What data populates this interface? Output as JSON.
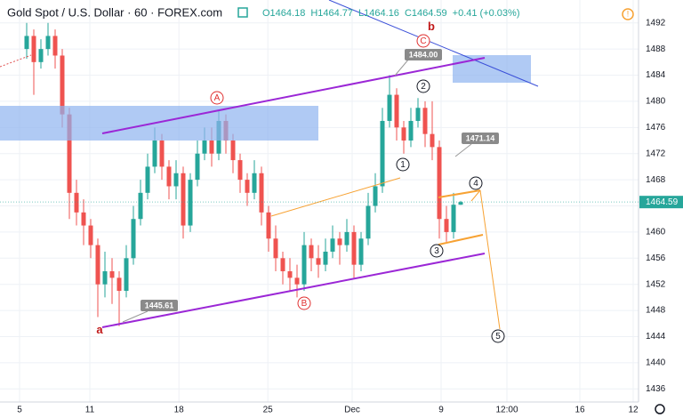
{
  "chart_data": {
    "type": "candlestick",
    "title": "Gold Spot / U.S. Dollar · 60 · FOREX.com",
    "ohlc_legend": [
      "O1464.18",
      "H1464.77",
      "L1464.16",
      "C1464.59",
      "+0.41 (+0.03%)"
    ],
    "ohlc": [
      [
        1488,
        1492,
        1486.5,
        1490
      ],
      [
        1490,
        1491,
        1481,
        1486
      ],
      [
        1486,
        1489.5,
        1485,
        1488
      ],
      [
        1488,
        1492,
        1487,
        1490
      ],
      [
        1490,
        1491,
        1485,
        1487
      ],
      [
        1487,
        1488,
        1476,
        1478
      ],
      [
        1478,
        1479,
        1462,
        1466
      ],
      [
        1466,
        1468,
        1461,
        1463
      ],
      [
        1463,
        1465,
        1458,
        1461
      ],
      [
        1461,
        1462,
        1456,
        1458
      ],
      [
        1458,
        1459,
        1447,
        1452
      ],
      [
        1452,
        1457,
        1450,
        1454
      ],
      [
        1454,
        1456,
        1449,
        1453
      ],
      [
        1453,
        1454,
        1445.61,
        1451
      ],
      [
        1451,
        1458,
        1450,
        1456
      ],
      [
        1456,
        1464,
        1455,
        1462
      ],
      [
        1462,
        1468,
        1461,
        1466
      ],
      [
        1466,
        1472,
        1465,
        1470
      ],
      [
        1470,
        1476,
        1469,
        1474
      ],
      [
        1474,
        1475,
        1468,
        1470
      ],
      [
        1470,
        1471,
        1465,
        1467
      ],
      [
        1467,
        1471,
        1465,
        1469
      ],
      [
        1469,
        1470,
        1459,
        1461
      ],
      [
        1461,
        1469,
        1460,
        1468
      ],
      [
        1468,
        1474,
        1467,
        1472
      ],
      [
        1472,
        1476,
        1471,
        1474
      ],
      [
        1474,
        1476,
        1470,
        1472
      ],
      [
        1472,
        1478.5,
        1471,
        1477
      ],
      [
        1477,
        1478,
        1472,
        1474
      ],
      [
        1474,
        1475,
        1469,
        1471
      ],
      [
        1471,
        1472,
        1466,
        1468
      ],
      [
        1468,
        1469,
        1464,
        1466
      ],
      [
        1466,
        1471,
        1465,
        1469
      ],
      [
        1469,
        1470,
        1461,
        1463
      ],
      [
        1463,
        1464,
        1457,
        1459
      ],
      [
        1459,
        1461,
        1454,
        1456
      ],
      [
        1456,
        1457,
        1452,
        1454
      ],
      [
        1454,
        1456,
        1451,
        1453
      ],
      [
        1453,
        1455,
        1450,
        1452
      ],
      [
        1452,
        1460,
        1451,
        1458
      ],
      [
        1458,
        1459,
        1454,
        1456
      ],
      [
        1456,
        1458,
        1453,
        1455
      ],
      [
        1455,
        1459,
        1454,
        1457
      ],
      [
        1457,
        1461,
        1456,
        1459
      ],
      [
        1459,
        1460,
        1455,
        1458
      ],
      [
        1458,
        1462,
        1457,
        1460
      ],
      [
        1460,
        1461,
        1453,
        1455
      ],
      [
        1455,
        1460,
        1454,
        1459
      ],
      [
        1459,
        1466,
        1458,
        1464
      ],
      [
        1464,
        1469,
        1463,
        1467
      ],
      [
        1467,
        1479,
        1466,
        1477
      ],
      [
        1477,
        1484,
        1476,
        1481
      ],
      [
        1481,
        1482,
        1474,
        1476
      ],
      [
        1476,
        1477,
        1472,
        1474
      ],
      [
        1474,
        1479,
        1473,
        1477
      ],
      [
        1477,
        1480.5,
        1476,
        1479
      ],
      [
        1479,
        1480,
        1473,
        1475
      ],
      [
        1475,
        1480,
        1471,
        1473
      ],
      [
        1473,
        1474,
        1459,
        1462
      ],
      [
        1462,
        1464,
        1458.5,
        1460
      ],
      [
        1460,
        1466,
        1459,
        1464.18
      ],
      [
        1464.18,
        1464.77,
        1464.16,
        1464.59
      ]
    ],
    "up_color": "#26a69a",
    "down_color": "#ef5350",
    "ylim": [
      1434,
      1495.5
    ],
    "yticks": [
      1436,
      1440,
      1444,
      1448,
      1452,
      1456,
      1460,
      1464,
      1468,
      1472,
      1476,
      1480,
      1484,
      1488,
      1492
    ],
    "xlim": [
      -3.75,
      86
    ],
    "xticks": [
      {
        "value": -1,
        "label": "5"
      },
      {
        "value": 8.875,
        "label": "11"
      },
      {
        "value": 21.4,
        "label": "18"
      },
      {
        "value": 33.9,
        "label": "25"
      },
      {
        "value": 45.75,
        "label": "Dec"
      },
      {
        "value": 58.25,
        "label": "9"
      },
      {
        "value": 67.5,
        "label": "12:00"
      },
      {
        "value": 77.75,
        "label": "16"
      },
      {
        "value": 85.25,
        "label": "12"
      }
    ],
    "grid": true,
    "last_price": {
      "value": 1464.59,
      "label": "1464.59"
    },
    "waves": [
      "A",
      "B",
      "C",
      "a",
      "b",
      "1",
      "2",
      "3",
      "4",
      "5"
    ],
    "price_tags": [
      "1484.00",
      "1471.14",
      "1445.61"
    ]
  }
}
